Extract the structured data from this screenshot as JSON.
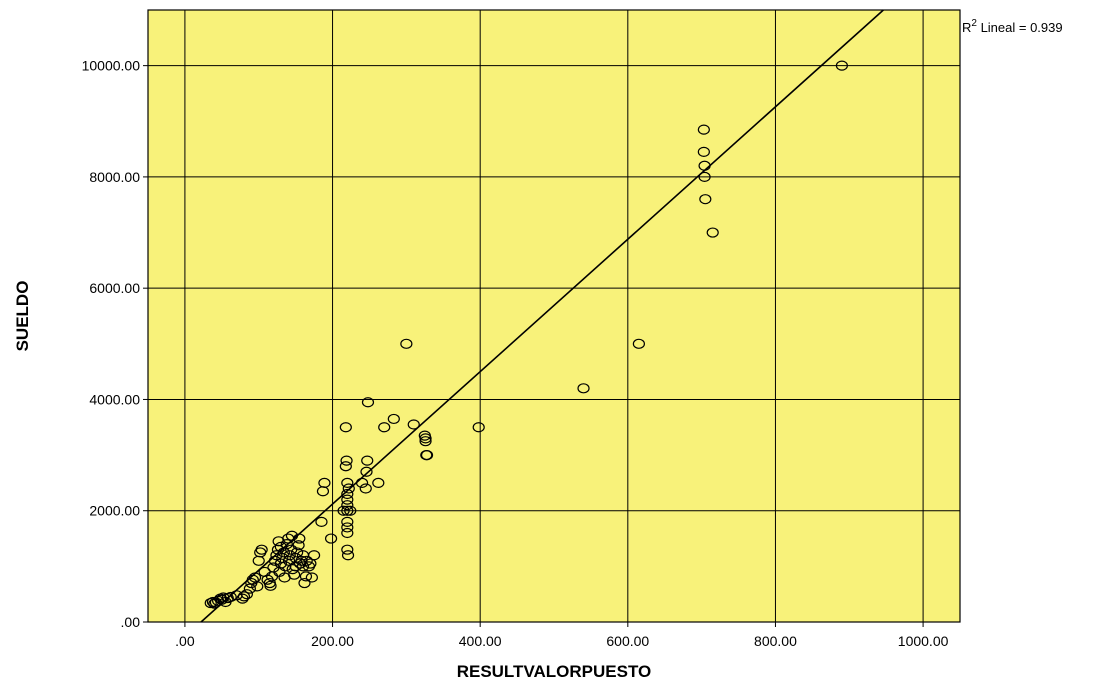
{
  "chart_data": {
    "type": "scatter",
    "xlabel": "RESULTVALORPUESTO",
    "ylabel": "SUELDO",
    "xlim": [
      -50,
      1050
    ],
    "ylim": [
      0,
      11000
    ],
    "x_ticks": [
      0,
      200,
      400,
      600,
      800,
      1000
    ],
    "y_ticks": [
      0,
      2000,
      4000,
      6000,
      8000,
      10000
    ],
    "x_tick_labels": [
      ".00",
      "200.00",
      "400.00",
      "600.00",
      "800.00",
      "1000.00"
    ],
    "y_tick_labels": [
      ".00",
      "2000.00",
      "4000.00",
      "6000.00",
      "8000.00",
      "10000.00"
    ],
    "grid": true,
    "background_color": "#f8f27a",
    "marker_color": "#000000",
    "fit_line": {
      "type": "linear",
      "slope": 11.9,
      "intercept": -260,
      "annotation_base": "R",
      "annotation_sup": "2",
      "annotation_rest": " Lineal = 0.939"
    },
    "points": [
      [
        35,
        340
      ],
      [
        38,
        360
      ],
      [
        40,
        330
      ],
      [
        42,
        350
      ],
      [
        45,
        380
      ],
      [
        48,
        420
      ],
      [
        50,
        400
      ],
      [
        52,
        440
      ],
      [
        55,
        360
      ],
      [
        58,
        430
      ],
      [
        62,
        450
      ],
      [
        70,
        480
      ],
      [
        78,
        420
      ],
      [
        80,
        460
      ],
      [
        84,
        500
      ],
      [
        88,
        600
      ],
      [
        90,
        700
      ],
      [
        92,
        760
      ],
      [
        95,
        800
      ],
      [
        98,
        640
      ],
      [
        100,
        1100
      ],
      [
        102,
        1250
      ],
      [
        104,
        1300
      ],
      [
        108,
        900
      ],
      [
        112,
        760
      ],
      [
        115,
        700
      ],
      [
        116,
        650
      ],
      [
        118,
        820
      ],
      [
        120,
        980
      ],
      [
        122,
        1100
      ],
      [
        124,
        1200
      ],
      [
        126,
        1300
      ],
      [
        127,
        1450
      ],
      [
        128,
        900
      ],
      [
        130,
        1050
      ],
      [
        130,
        1350
      ],
      [
        132,
        1150
      ],
      [
        134,
        1250
      ],
      [
        135,
        800
      ],
      [
        136,
        1000
      ],
      [
        138,
        1400
      ],
      [
        140,
        1500
      ],
      [
        141,
        1100
      ],
      [
        142,
        1200
      ],
      [
        144,
        1300
      ],
      [
        145,
        1550
      ],
      [
        146,
        950
      ],
      [
        148,
        850
      ],
      [
        150,
        1000
      ],
      [
        150,
        1150
      ],
      [
        152,
        1250
      ],
      [
        154,
        1380
      ],
      [
        155,
        1500
      ],
      [
        156,
        1050
      ],
      [
        158,
        1100
      ],
      [
        160,
        1200
      ],
      [
        160,
        1000
      ],
      [
        162,
        700
      ],
      [
        164,
        820
      ],
      [
        165,
        1100
      ],
      [
        168,
        1000
      ],
      [
        170,
        1050
      ],
      [
        172,
        800
      ],
      [
        175,
        1200
      ],
      [
        185,
        1800
      ],
      [
        187,
        2350
      ],
      [
        189,
        2500
      ],
      [
        198,
        1500
      ],
      [
        215,
        2000
      ],
      [
        218,
        3500
      ],
      [
        218,
        2800
      ],
      [
        219,
        2900
      ],
      [
        220,
        2500
      ],
      [
        220,
        2300
      ],
      [
        220,
        2200
      ],
      [
        220,
        2100
      ],
      [
        220,
        2000
      ],
      [
        220,
        1800
      ],
      [
        220,
        1700
      ],
      [
        220,
        1600
      ],
      [
        220,
        1300
      ],
      [
        221,
        1200
      ],
      [
        222,
        2400
      ],
      [
        224,
        2000
      ],
      [
        240,
        2500
      ],
      [
        245,
        2400
      ],
      [
        246,
        2700
      ],
      [
        247,
        2900
      ],
      [
        248,
        3950
      ],
      [
        262,
        2500
      ],
      [
        270,
        3500
      ],
      [
        283,
        3650
      ],
      [
        300,
        5000
      ],
      [
        310,
        3550
      ],
      [
        325,
        3350
      ],
      [
        326,
        3300
      ],
      [
        326,
        3250
      ],
      [
        327,
        3000
      ],
      [
        328,
        3000
      ],
      [
        398,
        3500
      ],
      [
        540,
        4200
      ],
      [
        615,
        5000
      ],
      [
        703,
        8850
      ],
      [
        703,
        8450
      ],
      [
        704,
        8200
      ],
      [
        704,
        8000
      ],
      [
        705,
        7600
      ],
      [
        715,
        7000
      ],
      [
        890,
        10000
      ]
    ]
  }
}
